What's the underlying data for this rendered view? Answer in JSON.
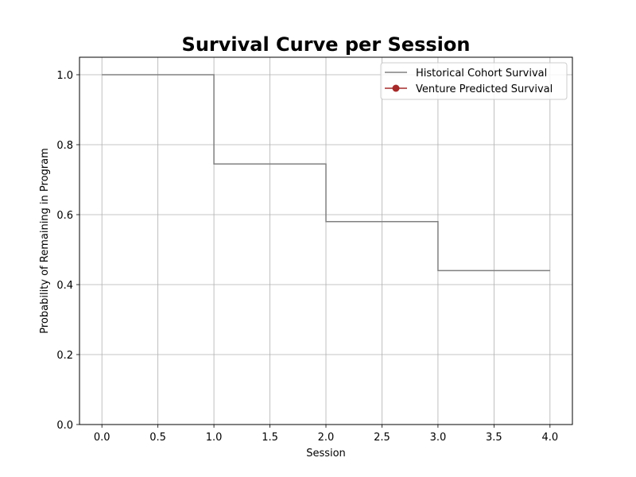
{
  "chart_data": {
    "type": "line",
    "title": "Survival Curve per Session",
    "xlabel": "Session",
    "ylabel": "Probability of Remaining in Program",
    "xlim": [
      -0.2,
      4.2
    ],
    "ylim": [
      0.0,
      1.05
    ],
    "xticks": [
      0.0,
      0.5,
      1.0,
      1.5,
      2.0,
      2.5,
      3.0,
      3.5,
      4.0
    ],
    "xtick_labels": [
      "0.0",
      "0.5",
      "1.0",
      "1.5",
      "2.0",
      "2.5",
      "3.0",
      "3.5",
      "4.0"
    ],
    "yticks": [
      0.0,
      0.2,
      0.4,
      0.6,
      0.8,
      1.0
    ],
    "ytick_labels": [
      "0.0",
      "0.2",
      "0.4",
      "0.6",
      "0.8",
      "1.0"
    ],
    "grid": true,
    "legend_position": "top-right",
    "series": [
      {
        "name": "Historical Cohort Survival",
        "style": "step-post",
        "color": "#808080",
        "marker": "none",
        "x": [
          0,
          1,
          2,
          3,
          4
        ],
        "y": [
          1.0,
          0.745,
          0.58,
          0.44,
          0.44
        ]
      },
      {
        "name": "Venture Predicted Survival",
        "style": "line",
        "color": "#a52a2a",
        "marker": "circle",
        "x": [],
        "y": []
      }
    ]
  }
}
